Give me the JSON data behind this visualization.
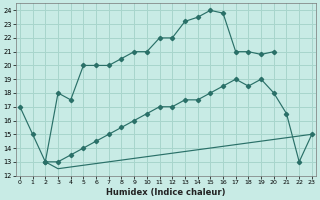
{
  "xlabel": "Humidex (Indice chaleur)",
  "bg_color": "#c8ebe5",
  "grid_color": "#a8d5cc",
  "line_color": "#2a7068",
  "ylim": [
    12,
    24.5
  ],
  "xlim": [
    -0.3,
    23.3
  ],
  "yticks": [
    12,
    13,
    14,
    15,
    16,
    17,
    18,
    19,
    20,
    21,
    22,
    23,
    24
  ],
  "xticks": [
    0,
    1,
    2,
    3,
    4,
    5,
    6,
    7,
    8,
    9,
    10,
    11,
    12,
    13,
    14,
    15,
    16,
    17,
    18,
    19,
    20,
    21,
    22,
    23
  ],
  "line1_x": [
    0,
    1,
    2,
    3,
    4,
    5,
    6,
    7,
    8,
    9,
    10,
    11,
    12,
    13,
    14,
    15,
    16,
    17,
    18,
    19,
    20
  ],
  "line1_y": [
    17,
    15,
    13,
    18,
    17.5,
    20,
    20,
    20,
    20.5,
    21,
    21,
    22,
    22,
    23.2,
    23.5,
    24,
    23.8,
    21,
    21,
    20.8,
    21
  ],
  "line2_x": [
    2,
    3,
    4,
    5,
    6,
    7,
    8,
    9,
    10,
    11,
    12,
    13,
    14,
    15,
    16,
    17,
    18,
    19,
    20,
    21,
    22,
    23
  ],
  "line2_y": [
    13,
    13,
    13.5,
    14,
    14.5,
    15,
    15.5,
    16,
    16.5,
    17,
    17,
    17.5,
    17.5,
    18,
    18.5,
    19,
    18.5,
    19,
    18,
    16.5,
    13,
    15
  ],
  "line3_x": [
    2,
    3,
    23
  ],
  "line3_y": [
    13,
    12.5,
    15
  ]
}
